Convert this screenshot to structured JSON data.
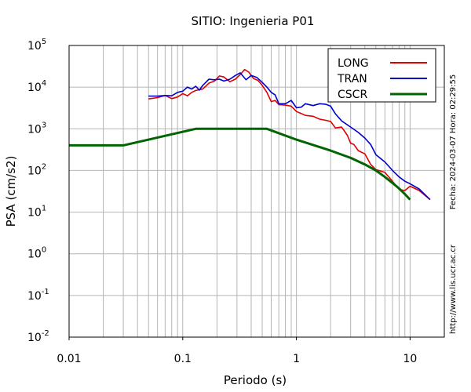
{
  "chart_data": {
    "type": "line",
    "title": "SITIO: Ingenieria P01",
    "xlabel": "Periodo (s)",
    "ylabel": "PSA (cm/s2)",
    "x_scale": "log",
    "y_scale": "log",
    "xlim": [
      0.01,
      20
    ],
    "ylim": [
      0.01,
      100000
    ],
    "x_ticks": [
      {
        "value": 0.01,
        "label": "0.01"
      },
      {
        "value": 0.1,
        "label": "0.1"
      },
      {
        "value": 1,
        "label": "1"
      },
      {
        "value": 10,
        "label": "10"
      }
    ],
    "y_ticks": [
      {
        "value": 0.01,
        "base": "10",
        "exp": "-2"
      },
      {
        "value": 0.1,
        "base": "10",
        "exp": "-1"
      },
      {
        "value": 1,
        "base": "10",
        "exp": "0"
      },
      {
        "value": 10,
        "base": "10",
        "exp": "1"
      },
      {
        "value": 100,
        "base": "10",
        "exp": "2"
      },
      {
        "value": 1000,
        "base": "10",
        "exp": "3"
      },
      {
        "value": 10000,
        "base": "10",
        "exp": "4"
      },
      {
        "value": 100000,
        "base": "10",
        "exp": "5"
      }
    ],
    "grid": true,
    "legend_position": "top-right",
    "series": [
      {
        "name": "LONG",
        "color": "#e00000",
        "points": [
          [
            0.05,
            5200
          ],
          [
            0.06,
            5600
          ],
          [
            0.07,
            6300
          ],
          [
            0.08,
            5300
          ],
          [
            0.09,
            5800
          ],
          [
            0.1,
            7000
          ],
          [
            0.11,
            6200
          ],
          [
            0.12,
            7500
          ],
          [
            0.13,
            8300
          ],
          [
            0.15,
            9000
          ],
          [
            0.17,
            12500
          ],
          [
            0.19,
            14000
          ],
          [
            0.21,
            18500
          ],
          [
            0.23,
            17500
          ],
          [
            0.26,
            13500
          ],
          [
            0.29,
            15500
          ],
          [
            0.32,
            20000
          ],
          [
            0.35,
            26500
          ],
          [
            0.38,
            23000
          ],
          [
            0.42,
            16000
          ],
          [
            0.46,
            14500
          ],
          [
            0.5,
            11000
          ],
          [
            0.55,
            7500
          ],
          [
            0.6,
            4500
          ],
          [
            0.65,
            4800
          ],
          [
            0.7,
            3800
          ],
          [
            0.8,
            3700
          ],
          [
            0.9,
            3500
          ],
          [
            1.0,
            2600
          ],
          [
            1.2,
            2100
          ],
          [
            1.4,
            2000
          ],
          [
            1.6,
            1700
          ],
          [
            1.8,
            1600
          ],
          [
            2.0,
            1500
          ],
          [
            2.2,
            1050
          ],
          [
            2.5,
            1100
          ],
          [
            2.8,
            700
          ],
          [
            3.0,
            450
          ],
          [
            3.2,
            420
          ],
          [
            3.5,
            300
          ],
          [
            4.0,
            250
          ],
          [
            4.5,
            140
          ],
          [
            5.0,
            105
          ],
          [
            6.0,
            90
          ],
          [
            7.0,
            55
          ],
          [
            8.0,
            35
          ],
          [
            9.0,
            33
          ],
          [
            10.0,
            42
          ],
          [
            12.0,
            33
          ],
          [
            15.0,
            20
          ]
        ]
      },
      {
        "name": "TRAN",
        "color": "#0000d0",
        "points": [
          [
            0.05,
            6100
          ],
          [
            0.06,
            6100
          ],
          [
            0.07,
            6300
          ],
          [
            0.08,
            6200
          ],
          [
            0.09,
            7500
          ],
          [
            0.1,
            8000
          ],
          [
            0.11,
            10000
          ],
          [
            0.12,
            9000
          ],
          [
            0.13,
            10500
          ],
          [
            0.14,
            8500
          ],
          [
            0.15,
            11000
          ],
          [
            0.17,
            15500
          ],
          [
            0.19,
            15000
          ],
          [
            0.21,
            15500
          ],
          [
            0.23,
            14000
          ],
          [
            0.26,
            15500
          ],
          [
            0.29,
            19000
          ],
          [
            0.32,
            22000
          ],
          [
            0.36,
            15000
          ],
          [
            0.4,
            19000
          ],
          [
            0.45,
            17000
          ],
          [
            0.5,
            13000
          ],
          [
            0.55,
            10000
          ],
          [
            0.6,
            7500
          ],
          [
            0.65,
            6500
          ],
          [
            0.7,
            4000
          ],
          [
            0.8,
            4000
          ],
          [
            0.9,
            4800
          ],
          [
            1.0,
            3200
          ],
          [
            1.1,
            3300
          ],
          [
            1.2,
            4000
          ],
          [
            1.4,
            3600
          ],
          [
            1.6,
            4000
          ],
          [
            1.8,
            3900
          ],
          [
            2.0,
            3500
          ],
          [
            2.2,
            2300
          ],
          [
            2.5,
            1550
          ],
          [
            3.0,
            1100
          ],
          [
            3.5,
            820
          ],
          [
            4.0,
            600
          ],
          [
            4.5,
            420
          ],
          [
            5.0,
            240
          ],
          [
            6.0,
            160
          ],
          [
            7.0,
            100
          ],
          [
            8.0,
            70
          ],
          [
            9.0,
            55
          ],
          [
            10.0,
            48
          ],
          [
            12.0,
            36
          ],
          [
            15.0,
            20
          ]
        ]
      },
      {
        "name": "CSCR",
        "color": "#006400",
        "points": [
          [
            0.01,
            400
          ],
          [
            0.03,
            400
          ],
          [
            0.13,
            1000
          ],
          [
            0.55,
            1000
          ],
          [
            1.0,
            550
          ],
          [
            2.0,
            300
          ],
          [
            3.0,
            200
          ],
          [
            4.0,
            140
          ],
          [
            5.0,
            100
          ],
          [
            6.0,
            70
          ],
          [
            7.0,
            50
          ],
          [
            8.0,
            37
          ],
          [
            9.0,
            27
          ],
          [
            10.0,
            20
          ]
        ]
      }
    ]
  },
  "side_text": {
    "date": "Fecha: 2024-03-07 Hora: 02:29:55",
    "url": "http://www.lis.ucr.ac.cr"
  }
}
